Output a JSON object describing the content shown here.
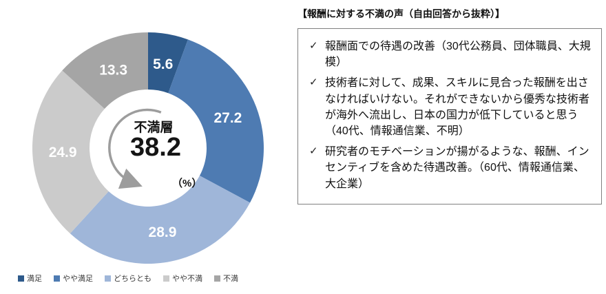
{
  "chart_data": {
    "type": "pie",
    "subtype": "donut",
    "categories": [
      "満足",
      "やや満足",
      "どちらとも",
      "やや不満",
      "不満"
    ],
    "values": [
      5.6,
      27.2,
      28.9,
      24.9,
      13.3
    ],
    "colors": [
      "#2e5a8b",
      "#4e7bb2",
      "#9fb6d9",
      "#cbcbcb",
      "#a5a5a5"
    ],
    "unit": "%",
    "start_angle_deg": 0,
    "direction": "clockwise",
    "legend_position": "bottom",
    "center": {
      "label": "不満層",
      "value": "38.2",
      "unit": "（%）"
    }
  },
  "comments_panel": {
    "title": "【報酬に対する不満の声（自由回答から抜粋）】",
    "bullet_glyph": "✓",
    "items": [
      "報酬面での待遇の改善（30代公務員、団体職員、大規模）",
      "技術者に対して、成果、スキルに見合った報酬を出さなければいけない。それができないから優秀な技術者が海外へ流出し、日本の国力が低下していると思う（40代、情報通信業、不明）",
      "研究者のモチベーションが揚がるような、報酬、インセンティブを含めた待遇改善。（60代、情報通信業、大企業）"
    ]
  }
}
